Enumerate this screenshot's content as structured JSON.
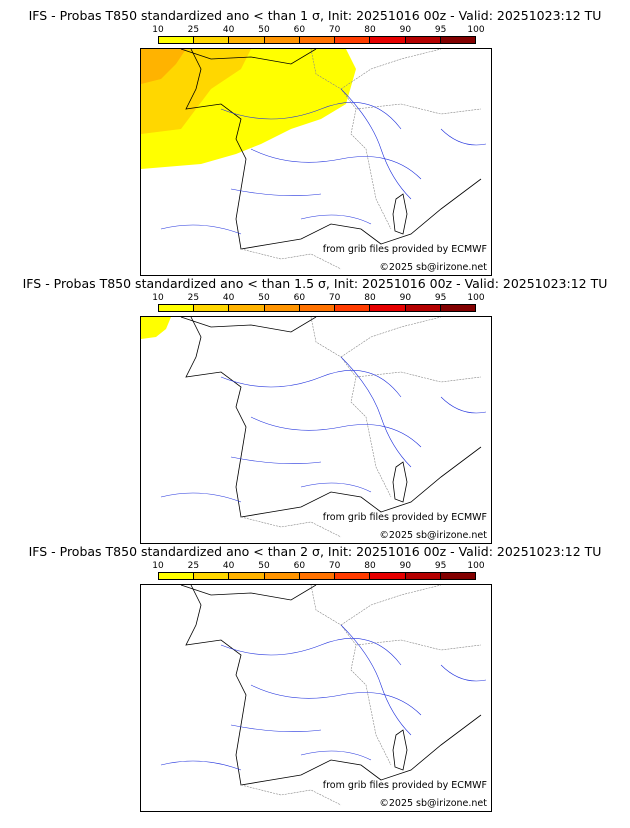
{
  "colorbar": {
    "ticks": [
      "10",
      "25",
      "40",
      "50",
      "60",
      "70",
      "80",
      "90",
      "95",
      "100"
    ],
    "colors": [
      "#ffff00",
      "#ffd700",
      "#ffb300",
      "#ff9400",
      "#ff7200",
      "#ff3c00",
      "#e60000",
      "#b40000",
      "#820000"
    ]
  },
  "panels": [
    {
      "title": "IFS - Probas T850  standardized ano < than 1 σ, Init: 20251016 00z - Valid: 20251023:12 TU",
      "credit_source": "from grib files provided by ECMWF",
      "credit_copyright": "©2025 sb@irizone.net"
    },
    {
      "title": "IFS - Probas T850  standardized ano < than 1.5 σ, Init: 20251016 00z - Valid: 20251023:12 TU",
      "credit_source": "from grib files provided by ECMWF",
      "credit_copyright": "©2025 sb@irizone.net"
    },
    {
      "title": "IFS - Probas T850  standardized ano < than 2 σ, Init: 20251016 00z - Valid: 20251023:12 TU",
      "credit_source": "from grib files provided by ECMWF",
      "credit_copyright": "©2025 sb@irizone.net"
    }
  ]
}
